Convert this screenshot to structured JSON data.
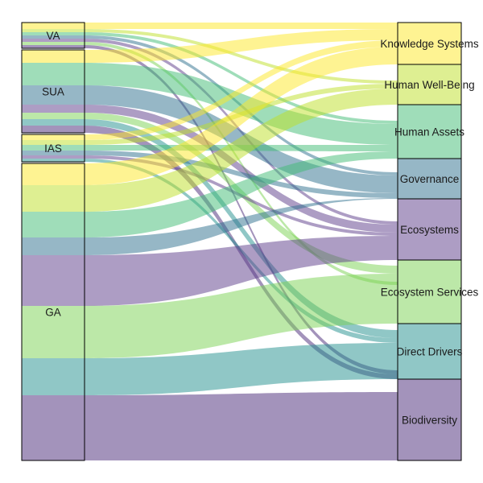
{
  "left_nodes": [
    {
      "id": "VA",
      "label": "VA"
    },
    {
      "id": "SUA",
      "label": "SUA"
    },
    {
      "id": "IAS",
      "label": "IAS"
    },
    {
      "id": "GA",
      "label": "GA"
    }
  ],
  "right_nodes": [
    {
      "id": "KS",
      "label": "Knowledge Systems",
      "color": "#fde725"
    },
    {
      "id": "HWB",
      "label": "Human Well-Being",
      "color": "#bddf26"
    },
    {
      "id": "HA",
      "label": "Human Assets",
      "color": "#3fbc73"
    },
    {
      "id": "GOV",
      "label": "Governance",
      "color": "#2e6f8e"
    },
    {
      "id": "ECO",
      "label": "Ecosystems",
      "color": "#5c3b89"
    },
    {
      "id": "ES",
      "label": "Ecosystem Services",
      "color": "#7ad151"
    },
    {
      "id": "DD",
      "label": "Direct Drivers",
      "color": "#21908d"
    },
    {
      "id": "BIO",
      "label": "Biodiversity",
      "color": "#482878"
    }
  ]
}
